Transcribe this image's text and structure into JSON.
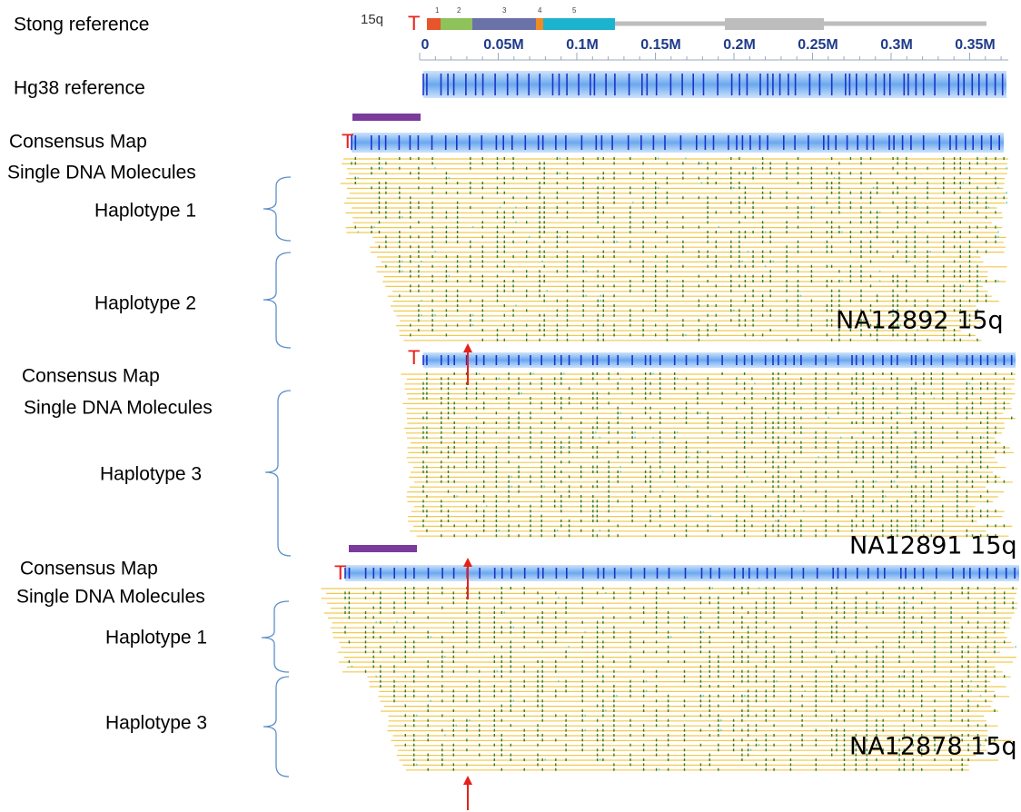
{
  "stong_reference": {
    "label": "Stong reference",
    "chromosome": "15q",
    "telomere": "T",
    "segments": [
      "1",
      "2",
      "3",
      "4",
      "5"
    ]
  },
  "hg38_reference": {
    "label": "Hg38 reference",
    "axis_ticks": [
      "0",
      "0.05M",
      "0.1M",
      "0.15M",
      "0.2M",
      "0.25M",
      "0.3M",
      "0.35M"
    ]
  },
  "panels": [
    {
      "consensus_label": "Consensus Map",
      "telomere": "T",
      "molecules_label": "Single DNA Molecules",
      "haplotypes": [
        "Haplotype 1",
        "Haplotype 2"
      ],
      "sample": "NA12892 15q"
    },
    {
      "consensus_label": "Consensus Map",
      "telomere": "T",
      "molecules_label": "Single DNA Molecules",
      "haplotypes": [
        "Haplotype 3"
      ],
      "sample": "NA12891 15q"
    },
    {
      "consensus_label": "Consensus Map",
      "telomere": "T",
      "molecules_label": "Single DNA Molecules",
      "haplotypes": [
        "Haplotype 1",
        "Haplotype 3"
      ],
      "sample": "NA12878 15q"
    }
  ]
}
